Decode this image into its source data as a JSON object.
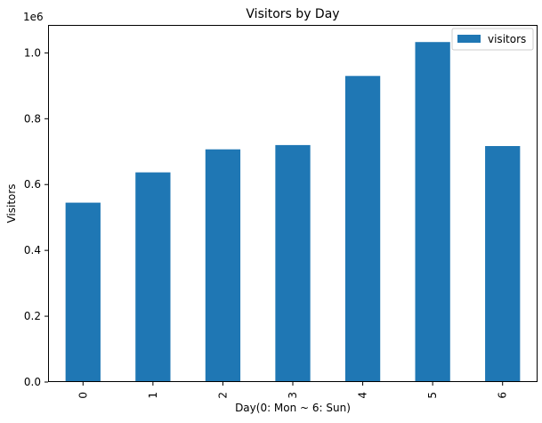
{
  "chart_data": {
    "type": "bar",
    "title": "Visitors by Day",
    "xlabel": "Day(0: Mon ~ 6: Sun)",
    "ylabel": "Visitors",
    "y_offset_label": "1e6",
    "categories": [
      "0",
      "1",
      "2",
      "3",
      "4",
      "5",
      "6"
    ],
    "series": [
      {
        "name": "visitors",
        "values": [
          545000,
          637000,
          707000,
          720000,
          930000,
          1033000,
          717000
        ],
        "color": "#1f77b4"
      }
    ],
    "y_ticks": [
      0,
      200000,
      400000,
      600000,
      800000,
      1000000
    ],
    "y_tick_labels": [
      "0.0",
      "0.2",
      "0.4",
      "0.6",
      "0.8",
      "1.0"
    ],
    "ylim": [
      0,
      1085000
    ],
    "grid": false,
    "legend_position": "top-right"
  }
}
